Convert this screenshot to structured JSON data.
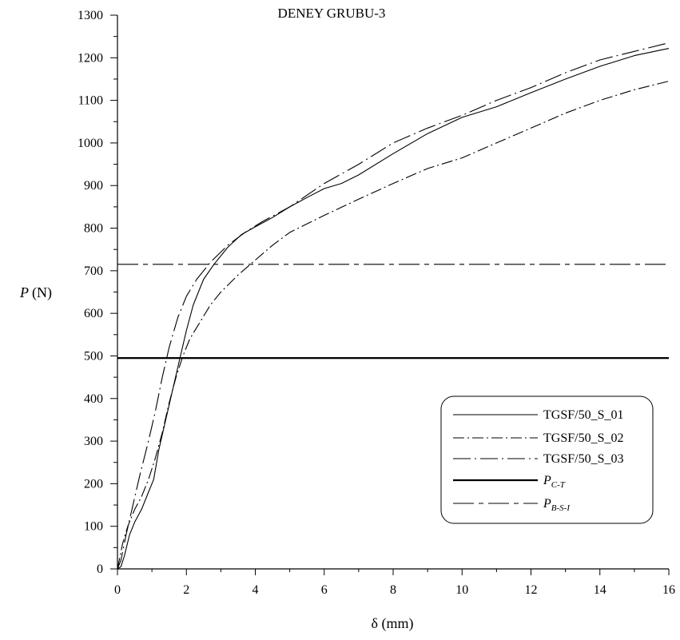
{
  "chart_data": {
    "type": "line",
    "title": "DENEY GRUBU-3",
    "xlabel": "δ (mm)",
    "ylabel_symbol": "P",
    "ylabel_unit": "(N)",
    "xlim": [
      0,
      16
    ],
    "ylim": [
      0,
      1300
    ],
    "x_ticks": [
      0,
      2,
      4,
      6,
      8,
      10,
      12,
      14,
      16
    ],
    "y_ticks": [
      0,
      100,
      200,
      300,
      400,
      500,
      600,
      700,
      800,
      900,
      1000,
      1100,
      1200,
      1300
    ],
    "grid": false,
    "legend_position": "bottom-right",
    "series": [
      {
        "name": "TGSF/50_S_01",
        "style": "solid",
        "points": [
          [
            0,
            0
          ],
          [
            0.1,
            5
          ],
          [
            0.2,
            30
          ],
          [
            0.35,
            80
          ],
          [
            0.5,
            110
          ],
          [
            0.7,
            140
          ],
          [
            0.9,
            180
          ],
          [
            1.05,
            210
          ],
          [
            1.2,
            280
          ],
          [
            1.4,
            350
          ],
          [
            1.6,
            420
          ],
          [
            1.8,
            490
          ],
          [
            2.0,
            560
          ],
          [
            2.2,
            620
          ],
          [
            2.5,
            680
          ],
          [
            2.8,
            715
          ],
          [
            3.2,
            755
          ],
          [
            3.6,
            785
          ],
          [
            4.0,
            803
          ],
          [
            4.5,
            825
          ],
          [
            5.0,
            850
          ],
          [
            5.5,
            872
          ],
          [
            6.0,
            893
          ],
          [
            6.5,
            905
          ],
          [
            7.0,
            925
          ],
          [
            8.0,
            975
          ],
          [
            9.0,
            1022
          ],
          [
            10.0,
            1060
          ],
          [
            11.0,
            1085
          ],
          [
            12.0,
            1118
          ],
          [
            13.0,
            1150
          ],
          [
            14.0,
            1180
          ],
          [
            15.0,
            1205
          ],
          [
            16.0,
            1222
          ]
        ]
      },
      {
        "name": "TGSF/50_S_02",
        "style": "dashdot",
        "points": [
          [
            0,
            0
          ],
          [
            0.15,
            60
          ],
          [
            0.3,
            100
          ],
          [
            0.5,
            140
          ],
          [
            0.7,
            170
          ],
          [
            0.9,
            210
          ],
          [
            1.1,
            260
          ],
          [
            1.3,
            320
          ],
          [
            1.5,
            390
          ],
          [
            1.7,
            450
          ],
          [
            1.9,
            500
          ],
          [
            2.1,
            540
          ],
          [
            2.4,
            580
          ],
          [
            2.7,
            620
          ],
          [
            3.0,
            650
          ],
          [
            3.5,
            690
          ],
          [
            4.0,
            725
          ],
          [
            4.5,
            760
          ],
          [
            5.0,
            790
          ],
          [
            6.0,
            830
          ],
          [
            7.0,
            868
          ],
          [
            8.0,
            905
          ],
          [
            9.0,
            940
          ],
          [
            10.0,
            965
          ],
          [
            11.0,
            1000
          ],
          [
            12.0,
            1035
          ],
          [
            13.0,
            1070
          ],
          [
            14.0,
            1100
          ],
          [
            15.0,
            1125
          ],
          [
            16.0,
            1145
          ]
        ]
      },
      {
        "name": "TGSF/50_S_03",
        "style": "longdashdot",
        "points": [
          [
            0,
            0
          ],
          [
            0.1,
            20
          ],
          [
            0.25,
            80
          ],
          [
            0.45,
            150
          ],
          [
            0.65,
            220
          ],
          [
            0.9,
            300
          ],
          [
            1.1,
            370
          ],
          [
            1.3,
            450
          ],
          [
            1.5,
            520
          ],
          [
            1.75,
            590
          ],
          [
            2.0,
            640
          ],
          [
            2.3,
            680
          ],
          [
            2.7,
            720
          ],
          [
            3.2,
            760
          ],
          [
            3.7,
            790
          ],
          [
            4.2,
            815
          ],
          [
            5.0,
            850
          ],
          [
            6.0,
            905
          ],
          [
            7.0,
            950
          ],
          [
            8.0,
            1000
          ],
          [
            9.0,
            1035
          ],
          [
            10.0,
            1065
          ],
          [
            11.0,
            1100
          ],
          [
            12.0,
            1130
          ],
          [
            13.0,
            1165
          ],
          [
            14.0,
            1195
          ],
          [
            15.0,
            1215
          ],
          [
            16.0,
            1235
          ]
        ]
      },
      {
        "name": "P_C-T",
        "style": "thick",
        "y_constant": 495
      },
      {
        "name": "P_B-S-I",
        "style": "longdashshort",
        "y_constant": 715
      }
    ]
  },
  "legend": {
    "items": [
      {
        "label": "TGSF/50_S_01",
        "style": "solid"
      },
      {
        "label": "TGSF/50_S_02",
        "style": "dashdot"
      },
      {
        "label": "TGSF/50_S_03",
        "style": "longdashdot"
      },
      {
        "main": "P",
        "sub": "C-T",
        "style": "thick"
      },
      {
        "main": "P",
        "sub": "B-S-I",
        "style": "longdashshort"
      }
    ]
  }
}
